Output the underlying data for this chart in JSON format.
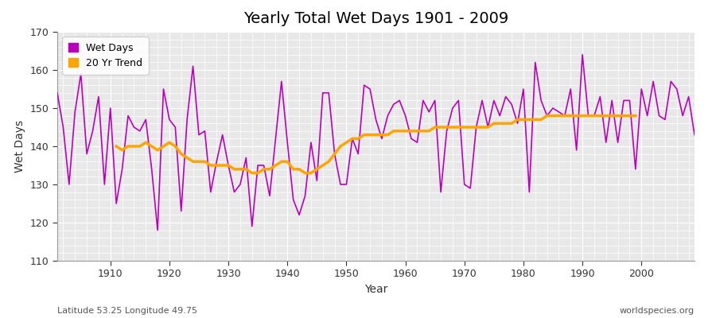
{
  "title": "Yearly Total Wet Days 1901 - 2009",
  "xlabel": "Year",
  "ylabel": "Wet Days",
  "subtitle": "Latitude 53.25 Longitude 49.75",
  "watermark": "worldspecies.org",
  "ylim": [
    110,
    170
  ],
  "xlim": [
    1901,
    2009
  ],
  "wet_days_color": "#BB00BB",
  "trend_color": "#FFA500",
  "fig_bg_color": "#FFFFFF",
  "plot_bg_color": "#E8E8E8",
  "grid_color": "#FFFFFF",
  "legend_labels": [
    "Wet Days",
    "20 Yr Trend"
  ],
  "years": [
    1901,
    1902,
    1903,
    1904,
    1905,
    1906,
    1907,
    1908,
    1909,
    1910,
    1911,
    1912,
    1913,
    1914,
    1915,
    1916,
    1917,
    1918,
    1919,
    1920,
    1921,
    1922,
    1923,
    1924,
    1925,
    1926,
    1927,
    1928,
    1929,
    1930,
    1931,
    1932,
    1933,
    1934,
    1935,
    1936,
    1937,
    1938,
    1939,
    1940,
    1941,
    1942,
    1943,
    1944,
    1945,
    1946,
    1947,
    1948,
    1949,
    1950,
    1951,
    1952,
    1953,
    1954,
    1955,
    1956,
    1957,
    1958,
    1959,
    1960,
    1961,
    1962,
    1963,
    1964,
    1965,
    1966,
    1967,
    1968,
    1969,
    1970,
    1971,
    1972,
    1973,
    1974,
    1975,
    1976,
    1977,
    1978,
    1979,
    1980,
    1981,
    1982,
    1983,
    1984,
    1985,
    1986,
    1987,
    1988,
    1989,
    1990,
    1991,
    1992,
    1993,
    1994,
    1995,
    1996,
    1997,
    1998,
    1999,
    2000,
    2001,
    2002,
    2003,
    2004,
    2005,
    2006,
    2007,
    2008,
    2009
  ],
  "wet_days": [
    154,
    145,
    130,
    149,
    159,
    138,
    144,
    153,
    130,
    150,
    125,
    134,
    148,
    145,
    144,
    147,
    134,
    118,
    155,
    147,
    145,
    123,
    147,
    161,
    143,
    144,
    128,
    136,
    143,
    135,
    128,
    130,
    137,
    119,
    135,
    135,
    127,
    142,
    157,
    141,
    126,
    122,
    127,
    141,
    131,
    154,
    154,
    138,
    130,
    130,
    142,
    138,
    156,
    155,
    147,
    142,
    148,
    151,
    152,
    148,
    142,
    141,
    152,
    149,
    152,
    128,
    144,
    150,
    152,
    130,
    129,
    145,
    152,
    145,
    152,
    148,
    153,
    151,
    146,
    155,
    128,
    162,
    152,
    148,
    150,
    149,
    148,
    155,
    139,
    164,
    148,
    148,
    153,
    141,
    152,
    141,
    152,
    152,
    134,
    155,
    148,
    157,
    148,
    147,
    157,
    155,
    148,
    153,
    143
  ],
  "trend_years": [
    1911,
    1912,
    1913,
    1914,
    1915,
    1916,
    1917,
    1918,
    1919,
    1920,
    1921,
    1922,
    1923,
    1924,
    1925,
    1926,
    1927,
    1928,
    1929,
    1930,
    1931,
    1932,
    1933,
    1934,
    1935,
    1936,
    1937,
    1938,
    1939,
    1940,
    1941,
    1942,
    1943,
    1944,
    1945,
    1946,
    1947,
    1948,
    1949,
    1950,
    1951,
    1952,
    1953,
    1954,
    1955,
    1956,
    1957,
    1958,
    1959,
    1960,
    1961,
    1962,
    1963,
    1964,
    1965,
    1966,
    1967,
    1968,
    1969,
    1970,
    1971,
    1972,
    1973,
    1974,
    1975,
    1976,
    1977,
    1978,
    1979,
    1980,
    1981,
    1982,
    1983,
    1984,
    1985,
    1986,
    1987,
    1988,
    1989,
    1990,
    1991,
    1992,
    1993,
    1994,
    1995,
    1996,
    1997,
    1998,
    1999
  ],
  "trend_values": [
    140,
    139,
    140,
    140,
    140,
    141,
    140,
    139,
    140,
    141,
    140,
    138,
    137,
    136,
    136,
    136,
    135,
    135,
    135,
    135,
    134,
    134,
    134,
    133,
    133,
    134,
    134,
    135,
    136,
    136,
    134,
    134,
    133,
    133,
    134,
    135,
    136,
    138,
    140,
    141,
    142,
    142,
    143,
    143,
    143,
    143,
    143,
    144,
    144,
    144,
    144,
    144,
    144,
    144,
    145,
    145,
    145,
    145,
    145,
    145,
    145,
    145,
    145,
    145,
    146,
    146,
    146,
    146,
    147,
    147,
    147,
    147,
    147,
    148,
    148,
    148,
    148,
    148,
    148,
    148,
    148,
    148,
    148,
    148,
    148,
    148,
    148,
    148,
    148
  ]
}
